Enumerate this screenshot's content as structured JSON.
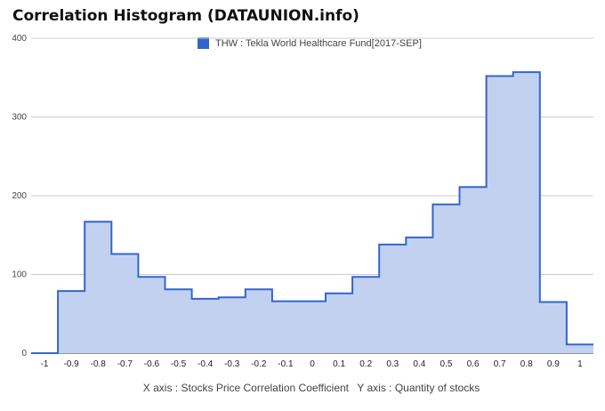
{
  "title": "Correlation Histogram (DATAUNION.info)",
  "legend_label": "THW : Tekla World Healthcare Fund[2017-SEP]",
  "axis_caption": {
    "x": "X axis : Stocks Price Correlation Coefficient",
    "y": "Y axis : Quantity of stocks"
  },
  "colors": {
    "series_line": "#3366cc",
    "series_fill": "#c3d1f0",
    "gridline": "#cccccc",
    "axis_text": "#222222"
  },
  "chart_data": {
    "type": "area",
    "title": "Correlation Histogram (DATAUNION.info)",
    "xlabel": "Stocks Price Correlation Coefficient",
    "ylabel": "Quantity of stocks",
    "xlim": [
      -1.05,
      1.05
    ],
    "ylim": [
      0,
      400
    ],
    "x_ticks": [
      -1,
      -0.9,
      -0.8,
      -0.7,
      -0.6,
      -0.5,
      -0.4,
      -0.3,
      -0.2,
      -0.1,
      0,
      0.1,
      0.2,
      0.3,
      0.4,
      0.5,
      0.6,
      0.7,
      0.8,
      0.9,
      1
    ],
    "y_ticks": [
      0,
      100,
      200,
      300,
      400
    ],
    "grid": true,
    "legend_position": "top",
    "series": [
      {
        "name": "THW : Tekla World Healthcare Fund[2017-SEP]",
        "x": [
          -1,
          -0.9,
          -0.8,
          -0.7,
          -0.6,
          -0.5,
          -0.4,
          -0.3,
          -0.2,
          -0.1,
          0,
          0.1,
          0.2,
          0.3,
          0.4,
          0.5,
          0.6,
          0.7,
          0.8,
          0.9,
          1
        ],
        "values": [
          0,
          79,
          167,
          126,
          97,
          81,
          69,
          71,
          81,
          66,
          66,
          76,
          97,
          138,
          147,
          189,
          211,
          352,
          357,
          65,
          11
        ]
      }
    ]
  }
}
